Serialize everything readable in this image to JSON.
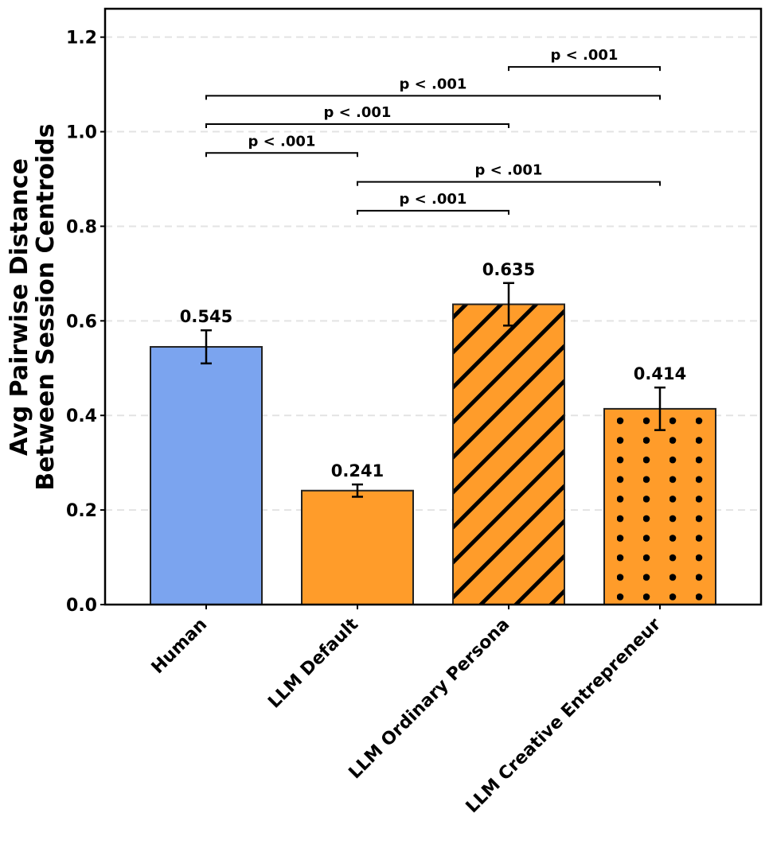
{
  "chart_data": {
    "type": "bar",
    "title": "",
    "xlabel": "",
    "ylabel_lines": [
      "Avg Pairwise Distance",
      "Between Session Centroids"
    ],
    "ylim": [
      0,
      1.26
    ],
    "yticks": [
      "0.0",
      "0.2",
      "0.4",
      "0.6",
      "0.8",
      "1.0",
      "1.2"
    ],
    "grid": "y-dashed",
    "categories": [
      "Human",
      "LLM Default",
      "LLM Ordinary Persona",
      "LLM Creative Entrepreneur"
    ],
    "values": [
      0.545,
      0.241,
      0.635,
      0.414
    ],
    "value_labels": [
      "0.545",
      "0.241",
      "0.635",
      "0.414"
    ],
    "errors": [
      0.035,
      0.013,
      0.045,
      0.045
    ],
    "colors": [
      "#7ba4ef",
      "#ff9c2a",
      "#ff9c2a",
      "#ff9c2a"
    ],
    "patterns": [
      "none",
      "none",
      "diagonal-hatch",
      "dots"
    ],
    "significance": [
      {
        "from": 2,
        "to": 3,
        "y": 1.137,
        "label": "p < .001"
      },
      {
        "from": 0,
        "to": 3,
        "y": 1.076,
        "label": "p < .001"
      },
      {
        "from": 0,
        "to": 2,
        "y": 1.016,
        "label": "p < .001"
      },
      {
        "from": 0,
        "to": 1,
        "y": 0.955,
        "label": "p < .001"
      },
      {
        "from": 1,
        "to": 3,
        "y": 0.894,
        "label": "p < .001"
      },
      {
        "from": 1,
        "to": 2,
        "y": 0.833,
        "label": "p < .001"
      }
    ]
  }
}
